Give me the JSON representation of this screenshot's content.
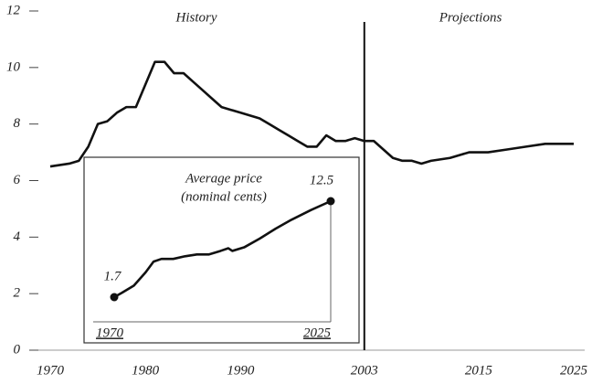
{
  "chart_data": [
    {
      "type": "line",
      "annotations": [
        "History",
        "Projections"
      ],
      "x": [
        1970,
        1972,
        1973,
        1974,
        1975,
        1976,
        1977,
        1978,
        1979,
        1980,
        1981,
        1982,
        1983,
        1984,
        1985,
        1986,
        1987,
        1988,
        1989,
        1990,
        1991,
        1992,
        1993,
        1994,
        1995,
        1996,
        1997,
        1998,
        1999,
        2000,
        2001,
        2002,
        2003,
        2004,
        2005,
        2006,
        2007,
        2008,
        2009,
        2010,
        2012,
        2014,
        2016,
        2018,
        2020,
        2022,
        2025
      ],
      "values": [
        6.5,
        6.6,
        6.7,
        7.2,
        8.0,
        8.1,
        8.4,
        8.6,
        8.6,
        9.4,
        10.2,
        10.2,
        9.8,
        9.8,
        9.5,
        9.2,
        8.9,
        8.6,
        8.5,
        8.4,
        8.3,
        8.2,
        8.0,
        7.8,
        7.6,
        7.4,
        7.2,
        7.2,
        7.6,
        7.4,
        7.4,
        7.5,
        7.4,
        7.4,
        7.1,
        6.8,
        6.7,
        6.7,
        6.6,
        6.7,
        6.8,
        7.0,
        7.0,
        7.1,
        7.2,
        7.3,
        7.3
      ],
      "color": "#111111",
      "xlim": [
        1970,
        2025
      ],
      "xticks": [
        1970,
        1980,
        1990,
        2003,
        2015,
        2025
      ],
      "ylim": [
        0,
        12
      ],
      "yticks": [
        0,
        2,
        4,
        6,
        8,
        10,
        12
      ]
    },
    {
      "type": "line",
      "title": "Average price",
      "subtitle": "(nominal cents)",
      "x": [
        1970,
        1972,
        1975,
        1978,
        1980,
        1982,
        1985,
        1988,
        1991,
        1994,
        1997,
        1999,
        2000,
        2003,
        2007,
        2011,
        2015,
        2020,
        2025
      ],
      "values": [
        1.7,
        2.2,
        3.0,
        4.5,
        5.7,
        6.0,
        6.0,
        6.3,
        6.5,
        6.5,
        6.9,
        7.2,
        6.9,
        7.3,
        8.3,
        9.4,
        10.4,
        11.5,
        12.5
      ],
      "color": "#111111",
      "xlim": [
        1970,
        2025
      ],
      "xticks": [
        1970,
        2025
      ]
    }
  ]
}
